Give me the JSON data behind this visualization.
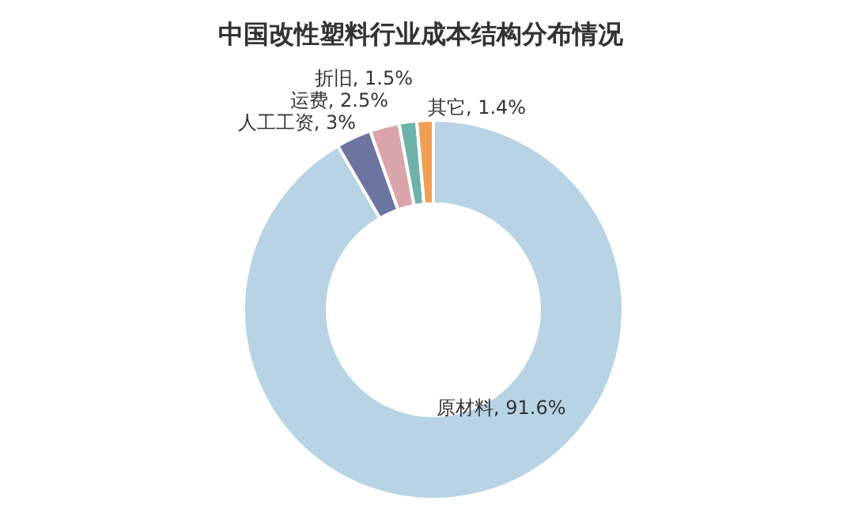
{
  "chart_data": {
    "type": "donut",
    "title": "中国改性塑料行业成本结构分布情况",
    "categories": [
      "原材料",
      "人工工资",
      "运费",
      "折旧",
      "其它"
    ],
    "values": [
      91.6,
      3,
      2.5,
      1.5,
      1.4
    ],
    "value_labels": [
      "91.6%",
      "3%",
      "2.5%",
      "1.5%",
      "1.4%"
    ],
    "colors": [
      "#b7d3e4",
      "#6c75a0",
      "#d9a5ab",
      "#6fb2aa",
      "#f0a055"
    ]
  }
}
